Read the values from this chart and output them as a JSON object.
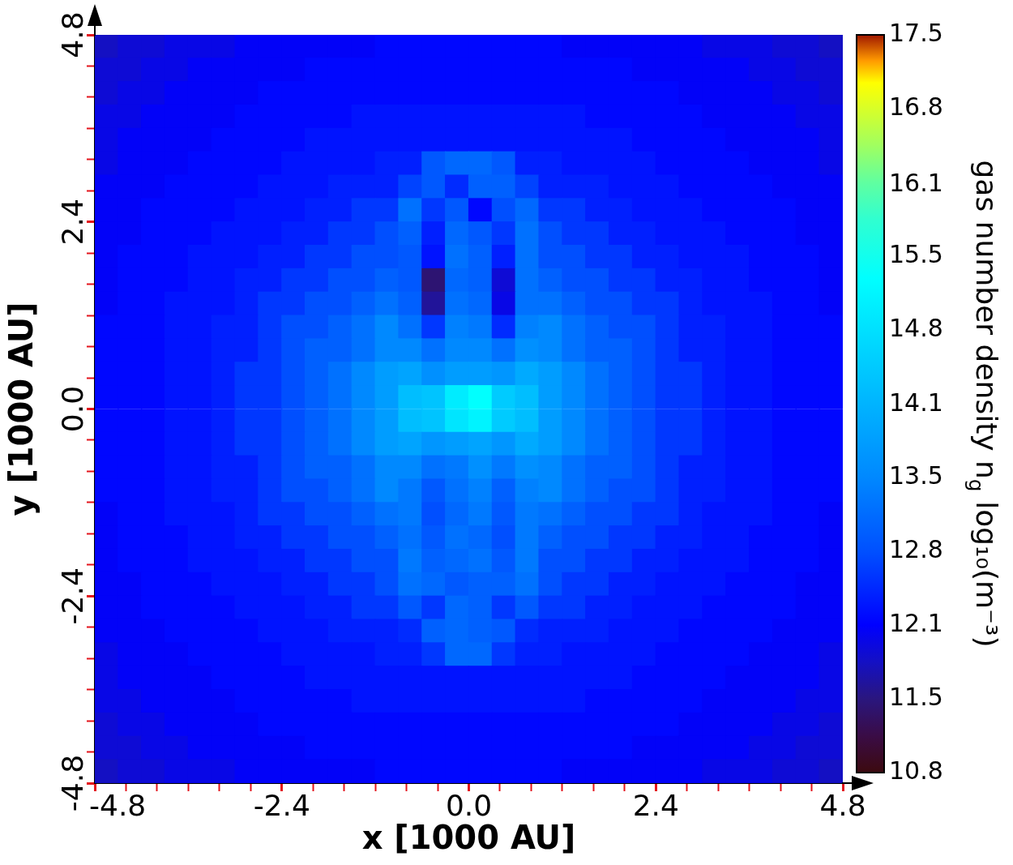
{
  "chart_data": {
    "type": "heatmap",
    "xlabel": "x [1000 AU]",
    "ylabel": "y [1000 AU]",
    "clabel": "gas number density n$_{g}$ log₁₀(m⁻³)",
    "x": [
      -4.65,
      -4.35,
      -4.05,
      -3.75,
      -3.45,
      -3.15,
      -2.85,
      -2.55,
      -2.25,
      -1.95,
      -1.65,
      -1.35,
      -1.05,
      -0.75,
      -0.45,
      -0.15,
      0.15,
      0.45,
      0.75,
      1.05,
      1.35,
      1.65,
      1.95,
      2.25,
      2.55,
      2.85,
      3.15,
      3.45,
      3.75,
      4.05,
      4.35,
      4.65
    ],
    "xlim": [
      -4.8,
      4.8
    ],
    "ylim": [
      -4.8,
      4.8
    ],
    "xticks": [
      -4.8,
      {
        "value": -4.4,
        "label": null
      },
      {
        "value": -4.0,
        "label": null
      },
      {
        "value": -3.6,
        "label": null
      },
      {
        "value": -3.2,
        "label": null
      },
      {
        "value": -2.8,
        "label": null
      },
      -2.4,
      {
        "value": -2.0,
        "label": null
      },
      {
        "value": -1.6,
        "label": null
      },
      {
        "value": -1.2,
        "label": null
      },
      {
        "value": -0.8,
        "label": null
      },
      {
        "value": -0.4,
        "label": null
      },
      {
        "value": 0,
        "label": "0.0"
      },
      {
        "value": 0.4,
        "label": null
      },
      {
        "value": 0.8,
        "label": null
      },
      {
        "value": 1.2,
        "label": null
      },
      {
        "value": 1.6,
        "label": null
      },
      {
        "value": 2.0,
        "label": null
      },
      2.4,
      {
        "value": 2.8,
        "label": null
      },
      {
        "value": 3.2,
        "label": null
      },
      {
        "value": 3.6,
        "label": null
      },
      {
        "value": 4.0,
        "label": null
      },
      {
        "value": 4.4,
        "label": null
      },
      4.8
    ],
    "yticks": [
      -4.8,
      {
        "value": -4.4,
        "label": null
      },
      {
        "value": -4.0,
        "label": null
      },
      {
        "value": -3.6,
        "label": null
      },
      {
        "value": -3.2,
        "label": null
      },
      {
        "value": -2.8,
        "label": null
      },
      -2.4,
      {
        "value": -2.0,
        "label": null
      },
      {
        "value": -1.6,
        "label": null
      },
      {
        "value": -1.2,
        "label": null
      },
      {
        "value": -0.8,
        "label": null
      },
      {
        "value": -0.4,
        "label": null
      },
      {
        "value": 0,
        "label": "0.0"
      },
      {
        "value": 0.4,
        "label": null
      },
      {
        "value": 0.8,
        "label": null
      },
      {
        "value": 1.2,
        "label": null
      },
      {
        "value": 1.6,
        "label": null
      },
      {
        "value": 2.0,
        "label": null
      },
      2.4,
      {
        "value": 2.8,
        "label": null
      },
      {
        "value": 3.2,
        "label": null
      },
      {
        "value": 3.6,
        "label": null
      },
      {
        "value": 4.0,
        "label": null
      },
      {
        "value": 4.4,
        "label": null
      },
      4.8
    ],
    "clim": [
      10.8,
      17.5
    ],
    "cticks": [
      10.8,
      {
        "value": 11.47,
        "label": "11.5"
      },
      {
        "value": 12.14,
        "label": "12.1"
      },
      {
        "value": 12.81,
        "label": "12.8"
      },
      {
        "value": 13.48,
        "label": "13.5"
      },
      {
        "value": 14.14,
        "label": "14.1"
      },
      {
        "value": 14.82,
        "label": "14.8"
      },
      {
        "value": 15.49,
        "label": "15.5"
      },
      {
        "value": 16.14,
        "label": "16.1"
      },
      {
        "value": 16.83,
        "label": "16.8"
      },
      17.5
    ],
    "cells": [
      [
        11.8,
        11.9,
        11.9,
        12.0,
        12.0,
        12.0,
        12.1,
        12.1,
        12.1,
        12.1,
        12.1,
        12.1,
        12.2,
        12.2,
        12.2,
        12.2,
        12.2,
        12.2,
        12.2,
        12.2,
        12.1,
        12.1,
        12.1,
        12.1,
        12.1,
        12.1,
        12.0,
        12.0,
        12.0,
        11.9,
        11.9,
        11.8
      ],
      [
        11.9,
        11.9,
        12.0,
        12.0,
        12.1,
        12.1,
        12.1,
        12.1,
        12.1,
        12.2,
        12.2,
        12.2,
        12.2,
        12.2,
        12.2,
        12.2,
        12.2,
        12.2,
        12.2,
        12.2,
        12.2,
        12.2,
        12.2,
        12.1,
        12.1,
        12.1,
        12.1,
        12.1,
        12.0,
        12.0,
        11.9,
        11.9
      ],
      [
        11.9,
        12.0,
        12.0,
        12.1,
        12.1,
        12.1,
        12.1,
        12.2,
        12.2,
        12.2,
        12.2,
        12.2,
        12.2,
        12.2,
        12.2,
        12.2,
        12.2,
        12.2,
        12.2,
        12.2,
        12.2,
        12.2,
        12.2,
        12.2,
        12.2,
        12.1,
        12.1,
        12.1,
        12.1,
        12.0,
        12.0,
        11.9
      ],
      [
        12.0,
        12.0,
        12.1,
        12.1,
        12.1,
        12.1,
        12.2,
        12.2,
        12.2,
        12.2,
        12.2,
        12.3,
        12.3,
        12.3,
        12.3,
        12.3,
        12.3,
        12.3,
        12.3,
        12.3,
        12.3,
        12.2,
        12.2,
        12.2,
        12.2,
        12.2,
        12.1,
        12.1,
        12.1,
        12.1,
        12.0,
        12.0
      ],
      [
        12.0,
        12.1,
        12.1,
        12.1,
        12.1,
        12.2,
        12.2,
        12.2,
        12.2,
        12.3,
        12.3,
        12.3,
        12.3,
        12.3,
        12.3,
        12.3,
        12.3,
        12.3,
        12.3,
        12.3,
        12.3,
        12.3,
        12.3,
        12.2,
        12.2,
        12.2,
        12.2,
        12.1,
        12.1,
        12.1,
        12.1,
        12.0
      ],
      [
        12.0,
        12.1,
        12.1,
        12.1,
        12.2,
        12.2,
        12.2,
        12.2,
        12.3,
        12.3,
        12.3,
        12.3,
        12.4,
        12.4,
        12.9,
        13.1,
        13.1,
        12.9,
        12.4,
        12.4,
        12.3,
        12.3,
        12.3,
        12.3,
        12.2,
        12.2,
        12.2,
        12.2,
        12.1,
        12.1,
        12.1,
        12.0
      ],
      [
        12.1,
        12.1,
        12.1,
        12.2,
        12.2,
        12.2,
        12.2,
        12.3,
        12.3,
        12.3,
        12.4,
        12.4,
        12.4,
        12.7,
        12.9,
        12.5,
        13.0,
        13.0,
        12.7,
        12.4,
        12.4,
        12.4,
        12.3,
        12.3,
        12.3,
        12.2,
        12.2,
        12.2,
        12.2,
        12.1,
        12.1,
        12.1
      ],
      [
        12.1,
        12.1,
        12.2,
        12.2,
        12.2,
        12.2,
        12.3,
        12.3,
        12.3,
        12.4,
        12.4,
        12.6,
        12.6,
        13.2,
        12.6,
        12.9,
        12.2,
        12.8,
        13.1,
        12.6,
        12.6,
        12.4,
        12.4,
        12.3,
        12.3,
        12.3,
        12.2,
        12.2,
        12.2,
        12.2,
        12.1,
        12.1
      ],
      [
        12.1,
        12.1,
        12.2,
        12.2,
        12.2,
        12.3,
        12.3,
        12.3,
        12.4,
        12.4,
        12.6,
        12.6,
        12.8,
        13.0,
        12.4,
        13.1,
        12.9,
        12.6,
        13.2,
        12.8,
        12.6,
        12.6,
        12.4,
        12.4,
        12.3,
        12.3,
        12.3,
        12.2,
        12.2,
        12.2,
        12.1,
        12.1
      ],
      [
        12.1,
        12.2,
        12.2,
        12.2,
        12.3,
        12.3,
        12.3,
        12.4,
        12.4,
        12.6,
        12.6,
        12.8,
        12.8,
        12.9,
        12.3,
        13.2,
        13.0,
        12.4,
        13.2,
        12.8,
        12.8,
        12.6,
        12.6,
        12.4,
        12.4,
        12.3,
        12.3,
        12.3,
        12.2,
        12.2,
        12.2,
        12.1
      ],
      [
        12.1,
        12.2,
        12.2,
        12.2,
        12.3,
        12.3,
        12.4,
        12.4,
        12.6,
        12.6,
        12.8,
        12.8,
        13.0,
        12.9,
        11.4,
        13.1,
        13.0,
        11.9,
        13.2,
        13.0,
        12.8,
        12.8,
        12.6,
        12.6,
        12.4,
        12.4,
        12.3,
        12.3,
        12.2,
        12.2,
        12.2,
        12.1
      ],
      [
        12.1,
        12.2,
        12.2,
        12.3,
        12.3,
        12.3,
        12.4,
        12.6,
        12.6,
        12.8,
        12.8,
        13.0,
        13.2,
        13.0,
        11.6,
        13.2,
        13.1,
        12.0,
        13.2,
        13.2,
        13.0,
        12.8,
        12.8,
        12.6,
        12.6,
        12.4,
        12.3,
        12.3,
        12.3,
        12.2,
        12.2,
        12.1
      ],
      [
        12.2,
        12.2,
        12.2,
        12.3,
        12.3,
        12.4,
        12.4,
        12.6,
        12.8,
        12.8,
        13.0,
        13.2,
        13.5,
        13.2,
        12.6,
        13.4,
        13.3,
        12.5,
        13.4,
        13.5,
        13.2,
        13.0,
        12.8,
        12.8,
        12.6,
        12.4,
        12.4,
        12.3,
        12.3,
        12.2,
        12.2,
        12.2
      ],
      [
        12.2,
        12.2,
        12.2,
        12.3,
        12.3,
        12.4,
        12.4,
        12.6,
        12.8,
        13.0,
        13.0,
        13.2,
        13.5,
        13.5,
        13.2,
        13.5,
        13.5,
        13.2,
        13.6,
        13.5,
        13.2,
        13.0,
        13.0,
        12.8,
        12.6,
        12.4,
        12.4,
        12.3,
        12.3,
        12.2,
        12.2,
        12.2
      ],
      [
        12.2,
        12.2,
        12.2,
        12.3,
        12.3,
        12.4,
        12.6,
        12.6,
        12.8,
        13.0,
        13.2,
        13.5,
        13.8,
        13.9,
        13.6,
        13.8,
        13.8,
        13.7,
        14.0,
        13.8,
        13.5,
        13.2,
        13.0,
        12.8,
        12.6,
        12.6,
        12.4,
        12.3,
        12.3,
        12.2,
        12.2,
        12.2
      ],
      [
        12.2,
        12.2,
        12.2,
        12.3,
        12.3,
        12.4,
        12.6,
        12.6,
        12.8,
        13.0,
        13.2,
        13.5,
        13.8,
        14.3,
        14.4,
        15.0,
        15.3,
        14.5,
        14.3,
        13.8,
        13.5,
        13.2,
        13.0,
        12.8,
        12.6,
        12.6,
        12.4,
        12.3,
        12.3,
        12.2,
        12.2,
        12.2
      ],
      [
        12.2,
        12.2,
        12.2,
        12.3,
        12.3,
        12.4,
        12.6,
        12.6,
        12.8,
        13.0,
        13.2,
        13.5,
        13.8,
        14.3,
        14.4,
        14.9,
        15.1,
        14.5,
        14.3,
        13.8,
        13.5,
        13.2,
        13.0,
        12.8,
        12.6,
        12.6,
        12.4,
        12.3,
        12.3,
        12.2,
        12.2,
        12.2
      ],
      [
        12.2,
        12.2,
        12.2,
        12.3,
        12.3,
        12.4,
        12.6,
        12.6,
        12.8,
        13.0,
        13.2,
        13.5,
        13.8,
        13.9,
        13.7,
        13.8,
        13.9,
        13.7,
        14.0,
        13.8,
        13.5,
        13.2,
        13.0,
        12.8,
        12.6,
        12.6,
        12.4,
        12.3,
        12.3,
        12.2,
        12.2,
        12.2
      ],
      [
        12.2,
        12.2,
        12.2,
        12.3,
        12.3,
        12.4,
        12.4,
        12.6,
        12.8,
        13.0,
        13.0,
        13.2,
        13.5,
        13.5,
        13.2,
        13.3,
        13.6,
        13.3,
        13.6,
        13.5,
        13.2,
        13.0,
        13.0,
        12.8,
        12.6,
        12.4,
        12.4,
        12.3,
        12.3,
        12.2,
        12.2,
        12.2
      ],
      [
        12.2,
        12.2,
        12.2,
        12.3,
        12.3,
        12.4,
        12.4,
        12.6,
        12.8,
        12.8,
        13.0,
        13.2,
        13.5,
        13.3,
        12.9,
        13.2,
        13.4,
        13.0,
        13.4,
        13.5,
        13.2,
        13.0,
        12.8,
        12.8,
        12.6,
        12.4,
        12.4,
        12.3,
        12.3,
        12.2,
        12.2,
        12.2
      ],
      [
        12.1,
        12.2,
        12.2,
        12.3,
        12.3,
        12.3,
        12.4,
        12.6,
        12.6,
        12.8,
        12.8,
        13.0,
        13.2,
        13.3,
        12.8,
        13.1,
        13.3,
        12.9,
        13.3,
        13.2,
        13.0,
        12.8,
        12.8,
        12.6,
        12.6,
        12.4,
        12.3,
        12.3,
        12.3,
        12.2,
        12.2,
        12.1
      ],
      [
        12.1,
        12.2,
        12.2,
        12.2,
        12.3,
        12.3,
        12.4,
        12.4,
        12.6,
        12.6,
        12.8,
        12.8,
        13.0,
        13.2,
        12.9,
        13.2,
        13.1,
        12.8,
        13.3,
        13.0,
        12.8,
        12.8,
        12.6,
        12.6,
        12.4,
        12.4,
        12.3,
        12.3,
        12.2,
        12.2,
        12.2,
        12.1
      ],
      [
        12.1,
        12.2,
        12.2,
        12.2,
        12.3,
        12.3,
        12.3,
        12.4,
        12.4,
        12.6,
        12.6,
        12.8,
        12.8,
        13.3,
        13.0,
        13.1,
        13.2,
        12.9,
        13.3,
        12.8,
        12.8,
        12.6,
        12.6,
        12.4,
        12.4,
        12.3,
        12.3,
        12.3,
        12.2,
        12.2,
        12.2,
        12.1
      ],
      [
        12.1,
        12.1,
        12.2,
        12.2,
        12.2,
        12.3,
        12.3,
        12.3,
        12.4,
        12.4,
        12.6,
        12.6,
        12.8,
        13.2,
        13.1,
        12.9,
        13.0,
        13.0,
        13.2,
        12.8,
        12.6,
        12.6,
        12.4,
        12.4,
        12.3,
        12.3,
        12.3,
        12.2,
        12.2,
        12.2,
        12.1,
        12.1
      ],
      [
        12.1,
        12.1,
        12.2,
        12.2,
        12.2,
        12.2,
        12.3,
        12.3,
        12.3,
        12.4,
        12.4,
        12.6,
        12.6,
        12.9,
        12.6,
        13.1,
        13.0,
        12.6,
        12.9,
        12.6,
        12.6,
        12.4,
        12.4,
        12.3,
        12.3,
        12.3,
        12.2,
        12.2,
        12.2,
        12.2,
        12.1,
        12.1
      ],
      [
        12.1,
        12.1,
        12.1,
        12.2,
        12.2,
        12.2,
        12.2,
        12.3,
        12.3,
        12.3,
        12.4,
        12.4,
        12.4,
        12.5,
        13.0,
        13.1,
        13.0,
        12.9,
        12.5,
        12.4,
        12.4,
        12.4,
        12.3,
        12.3,
        12.3,
        12.2,
        12.2,
        12.2,
        12.2,
        12.1,
        12.1,
        12.1
      ],
      [
        12.0,
        12.1,
        12.1,
        12.1,
        12.2,
        12.2,
        12.2,
        12.2,
        12.3,
        12.3,
        12.3,
        12.3,
        12.4,
        12.4,
        12.6,
        13.1,
        13.1,
        12.6,
        12.4,
        12.4,
        12.3,
        12.3,
        12.3,
        12.3,
        12.2,
        12.2,
        12.2,
        12.2,
        12.1,
        12.1,
        12.1,
        12.0
      ],
      [
        12.0,
        12.1,
        12.1,
        12.1,
        12.1,
        12.2,
        12.2,
        12.2,
        12.2,
        12.3,
        12.3,
        12.3,
        12.3,
        12.3,
        12.3,
        12.3,
        12.3,
        12.3,
        12.3,
        12.3,
        12.3,
        12.3,
        12.3,
        12.2,
        12.2,
        12.2,
        12.2,
        12.1,
        12.1,
        12.1,
        12.1,
        12.0
      ],
      [
        12.0,
        12.0,
        12.1,
        12.1,
        12.1,
        12.1,
        12.2,
        12.2,
        12.2,
        12.2,
        12.2,
        12.3,
        12.3,
        12.3,
        12.3,
        12.3,
        12.3,
        12.3,
        12.3,
        12.3,
        12.3,
        12.2,
        12.2,
        12.2,
        12.2,
        12.2,
        12.1,
        12.1,
        12.1,
        12.1,
        12.0,
        12.0
      ],
      [
        11.9,
        12.0,
        12.0,
        12.1,
        12.1,
        12.1,
        12.1,
        12.2,
        12.2,
        12.2,
        12.2,
        12.2,
        12.2,
        12.2,
        12.2,
        12.2,
        12.2,
        12.2,
        12.2,
        12.2,
        12.2,
        12.2,
        12.2,
        12.2,
        12.2,
        12.1,
        12.1,
        12.1,
        12.1,
        12.0,
        12.0,
        11.9
      ],
      [
        11.9,
        11.9,
        12.0,
        12.0,
        12.1,
        12.1,
        12.1,
        12.1,
        12.1,
        12.2,
        12.2,
        12.2,
        12.2,
        12.2,
        12.2,
        12.2,
        12.2,
        12.2,
        12.2,
        12.2,
        12.2,
        12.2,
        12.2,
        12.1,
        12.1,
        12.1,
        12.1,
        12.1,
        12.0,
        12.0,
        11.9,
        11.9
      ],
      [
        11.8,
        11.9,
        11.9,
        12.0,
        12.0,
        12.0,
        12.1,
        12.1,
        12.1,
        12.1,
        12.1,
        12.1,
        12.2,
        12.2,
        12.2,
        12.2,
        12.2,
        12.2,
        12.2,
        12.2,
        12.1,
        12.1,
        12.1,
        12.1,
        12.1,
        12.1,
        12.0,
        12.0,
        12.0,
        11.9,
        11.9,
        11.8
      ]
    ]
  }
}
